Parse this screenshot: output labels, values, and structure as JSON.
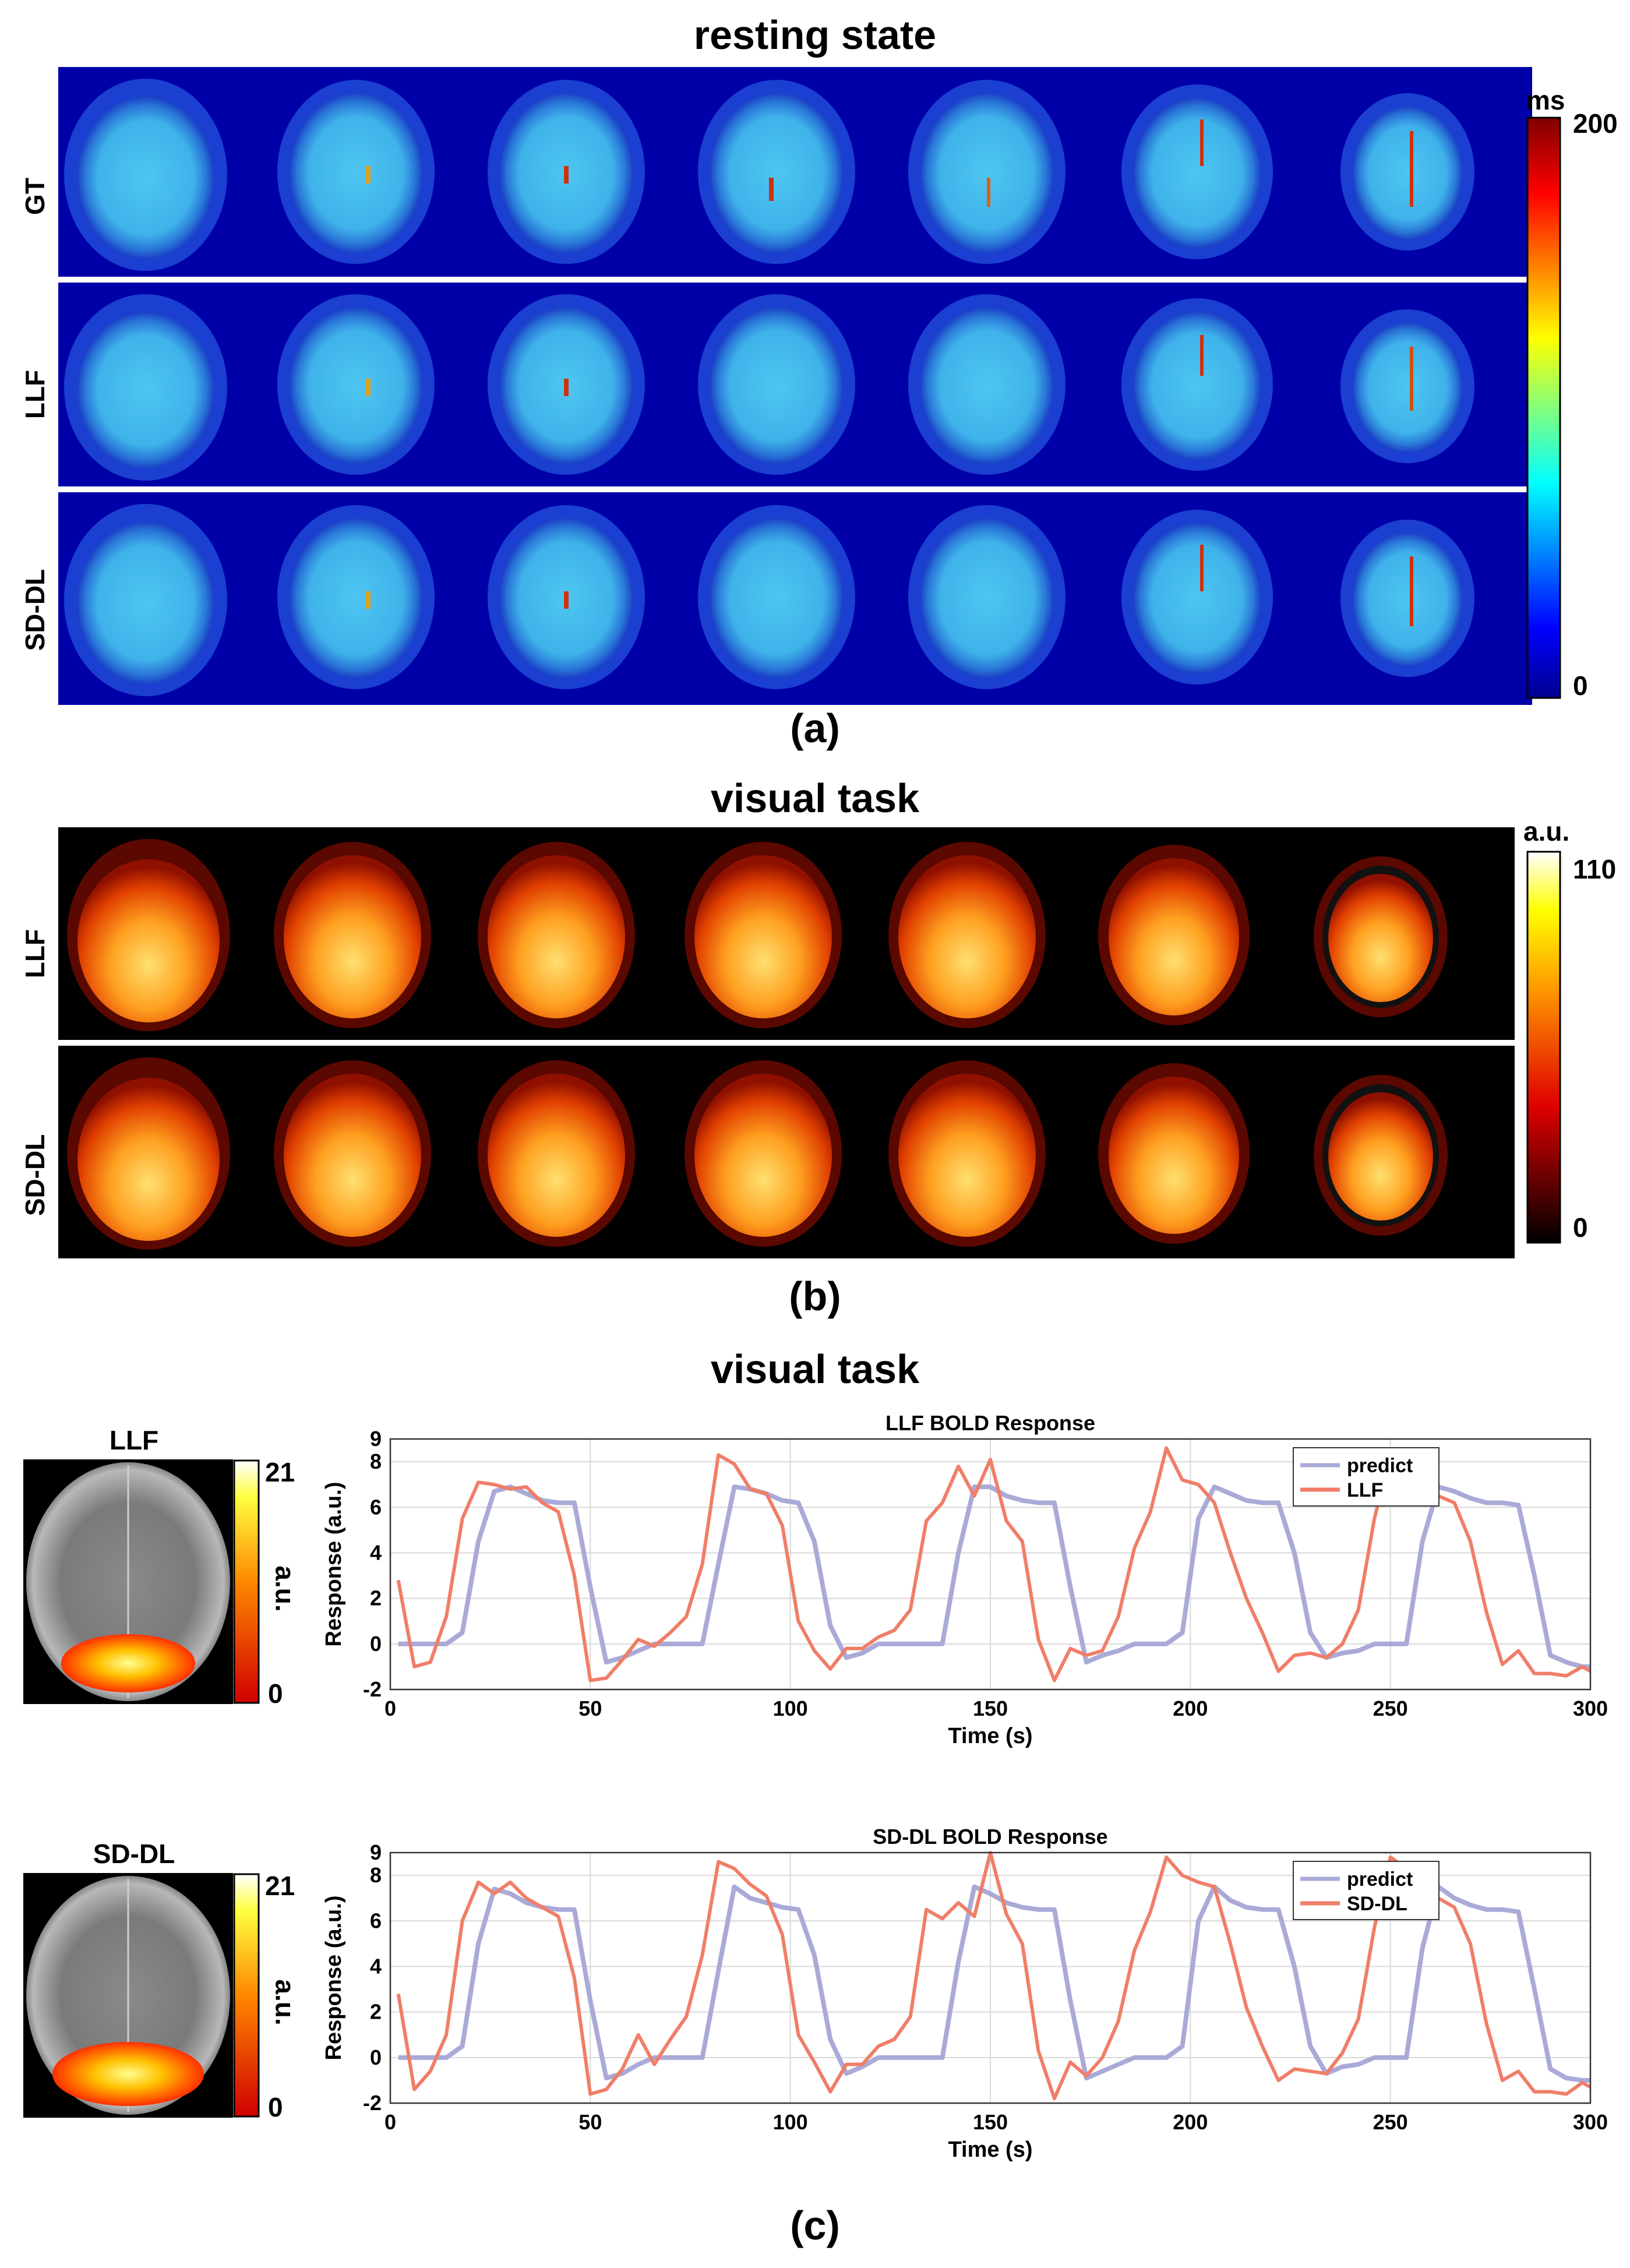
{
  "panel_a": {
    "title": "resting state",
    "label": "(a)",
    "rows": [
      "GT",
      "LLF",
      "SD-DL"
    ],
    "colorbar": {
      "unit": "ms",
      "max": "200",
      "min": "0",
      "colormap": "jet"
    }
  },
  "panel_b": {
    "title": "visual task",
    "label": "(b)",
    "rows": [
      "LLF",
      "SD-DL"
    ],
    "colorbar": {
      "unit": "a.u.",
      "max": "110",
      "min": "0",
      "colormap": "hot"
    }
  },
  "panel_c": {
    "title": "visual task",
    "label": "(c)",
    "maps": [
      {
        "label": "LLF",
        "cb_max": "21",
        "cb_min": "0",
        "cb_unit": "a.u."
      },
      {
        "label": "SD-DL",
        "cb_max": "21",
        "cb_min": "0",
        "cb_unit": "a.u."
      }
    ]
  },
  "chart_data": [
    {
      "type": "line",
      "title": "LLF BOLD Response",
      "xlabel": "Time (s)",
      "ylabel": "Response (a.u.)",
      "xlim": [
        0,
        300
      ],
      "ylim": [
        -2,
        9
      ],
      "xticks": [
        0,
        50,
        100,
        150,
        200,
        250,
        300
      ],
      "yticks": [
        -2,
        0,
        2,
        4,
        6,
        8,
        9
      ],
      "grid": true,
      "legend_position": "top-right",
      "x": [
        2,
        6,
        10,
        14,
        18,
        22,
        26,
        30,
        34,
        38,
        42,
        46,
        50,
        54,
        58,
        62,
        66,
        70,
        74,
        78,
        82,
        86,
        90,
        94,
        98,
        102,
        106,
        110,
        114,
        118,
        122,
        126,
        130,
        134,
        138,
        142,
        146,
        150,
        154,
        158,
        162,
        166,
        170,
        174,
        178,
        182,
        186,
        190,
        194,
        198,
        202,
        206,
        210,
        214,
        218,
        222,
        226,
        230,
        234,
        238,
        242,
        246,
        250,
        254,
        258,
        262,
        266,
        270,
        274,
        278,
        282,
        286,
        290,
        294,
        298,
        300
      ],
      "series": [
        {
          "name": "predict",
          "color": "#aaaad8",
          "values": [
            0,
            0,
            0,
            0,
            0.5,
            4.5,
            6.7,
            6.9,
            6.6,
            6.3,
            6.2,
            6.2,
            2.5,
            -0.8,
            -0.6,
            -0.3,
            0,
            0,
            0,
            0,
            3.5,
            6.9,
            6.8,
            6.6,
            6.3,
            6.2,
            4.5,
            0.8,
            -0.6,
            -0.4,
            0,
            0,
            0,
            0,
            0,
            4,
            6.9,
            6.9,
            6.5,
            6.3,
            6.2,
            6.2,
            2.5,
            -0.8,
            -0.5,
            -0.3,
            0,
            0,
            0,
            0.5,
            5.5,
            6.9,
            6.6,
            6.3,
            6.2,
            6.2,
            4,
            0.5,
            -0.6,
            -0.4,
            -0.3,
            0,
            0,
            0,
            4.5,
            6.9,
            6.7,
            6.4,
            6.2,
            6.2,
            6.1,
            3,
            -0.5,
            -0.8,
            -1,
            -1
          ]
        },
        {
          "name": "LLF",
          "color": "#f07e68",
          "values": [
            2.8,
            -1,
            -0.8,
            1.2,
            5.5,
            7.1,
            7,
            6.8,
            6.9,
            6.2,
            5.8,
            3,
            -1.6,
            -1.5,
            -0.7,
            0.2,
            -0.1,
            0.5,
            1.2,
            3.5,
            8.3,
            7.9,
            6.8,
            6.6,
            5.2,
            1,
            -0.3,
            -1.1,
            -0.2,
            -0.2,
            0.3,
            0.6,
            1.5,
            5.4,
            6.2,
            7.8,
            6.5,
            8.1,
            5.4,
            4.5,
            0.2,
            -1.6,
            -0.2,
            -0.5,
            -0.3,
            1.2,
            4.2,
            5.8,
            8.6,
            7.2,
            7,
            6.2,
            4,
            2,
            0.5,
            -1.2,
            -0.5,
            -0.4,
            -0.6,
            0,
            1.5,
            5.5,
            8.3,
            7.7,
            6.2,
            6.5,
            6.2,
            4.5,
            1.4,
            -0.9,
            -0.3,
            -1.3,
            -1.3,
            -1.4,
            -1,
            -1.2
          ]
        }
      ]
    },
    {
      "type": "line",
      "title": "SD-DL BOLD Response",
      "xlabel": "Time (s)",
      "ylabel": "Response (a.u.)",
      "xlim": [
        0,
        300
      ],
      "ylim": [
        -2,
        9
      ],
      "xticks": [
        0,
        50,
        100,
        150,
        200,
        250,
        300
      ],
      "yticks": [
        -2,
        0,
        2,
        4,
        6,
        8,
        9
      ],
      "grid": true,
      "legend_position": "top-right",
      "x": [
        2,
        6,
        10,
        14,
        18,
        22,
        26,
        30,
        34,
        38,
        42,
        46,
        50,
        54,
        58,
        62,
        66,
        70,
        74,
        78,
        82,
        86,
        90,
        94,
        98,
        102,
        106,
        110,
        114,
        118,
        122,
        126,
        130,
        134,
        138,
        142,
        146,
        150,
        154,
        158,
        162,
        166,
        170,
        174,
        178,
        182,
        186,
        190,
        194,
        198,
        202,
        206,
        210,
        214,
        218,
        222,
        226,
        230,
        234,
        238,
        242,
        246,
        250,
        254,
        258,
        262,
        266,
        270,
        274,
        278,
        282,
        286,
        290,
        294,
        298,
        300
      ],
      "series": [
        {
          "name": "predict",
          "color": "#aaaad8",
          "values": [
            0,
            0,
            0,
            0,
            0.5,
            5,
            7.4,
            7.2,
            6.8,
            6.6,
            6.5,
            6.5,
            2.5,
            -0.9,
            -0.7,
            -0.3,
            0,
            0,
            0,
            0,
            3.8,
            7.5,
            7,
            6.8,
            6.6,
            6.5,
            4.5,
            0.8,
            -0.7,
            -0.4,
            0,
            0,
            0,
            0,
            0,
            4.2,
            7.5,
            7.2,
            6.8,
            6.6,
            6.5,
            6.5,
            2.5,
            -0.9,
            -0.6,
            -0.3,
            0,
            0,
            0,
            0.5,
            6,
            7.5,
            6.9,
            6.6,
            6.5,
            6.5,
            4,
            0.5,
            -0.7,
            -0.4,
            -0.3,
            0,
            0,
            0,
            4.8,
            7.5,
            7,
            6.7,
            6.5,
            6.5,
            6.4,
            3,
            -0.5,
            -0.9,
            -1,
            -1
          ]
        },
        {
          "name": "SD-DL",
          "color": "#f07e68",
          "values": [
            2.8,
            -1.4,
            -0.6,
            1,
            6,
            7.7,
            7.2,
            7.7,
            7,
            6.6,
            6.2,
            3.5,
            -1.6,
            -1.4,
            -0.5,
            1,
            -0.3,
            0.8,
            1.8,
            4.5,
            8.6,
            8.3,
            7.6,
            7.1,
            5.4,
            1,
            -0.2,
            -1.5,
            -0.3,
            -0.3,
            0.5,
            0.8,
            1.8,
            6.5,
            6.1,
            6.8,
            6.2,
            9,
            6.3,
            5,
            0.3,
            -1.8,
            -0.2,
            -0.8,
            0,
            1.6,
            4.7,
            6.4,
            8.8,
            8,
            7.7,
            7.5,
            5,
            2.2,
            0.5,
            -1,
            -0.5,
            -0.6,
            -0.7,
            0.2,
            1.7,
            5.7,
            8.8,
            8.3,
            6.5,
            7,
            6.6,
            5,
            1.5,
            -1,
            -0.6,
            -1.5,
            -1.5,
            -1.6,
            -1.1,
            -1.3
          ]
        }
      ]
    }
  ]
}
